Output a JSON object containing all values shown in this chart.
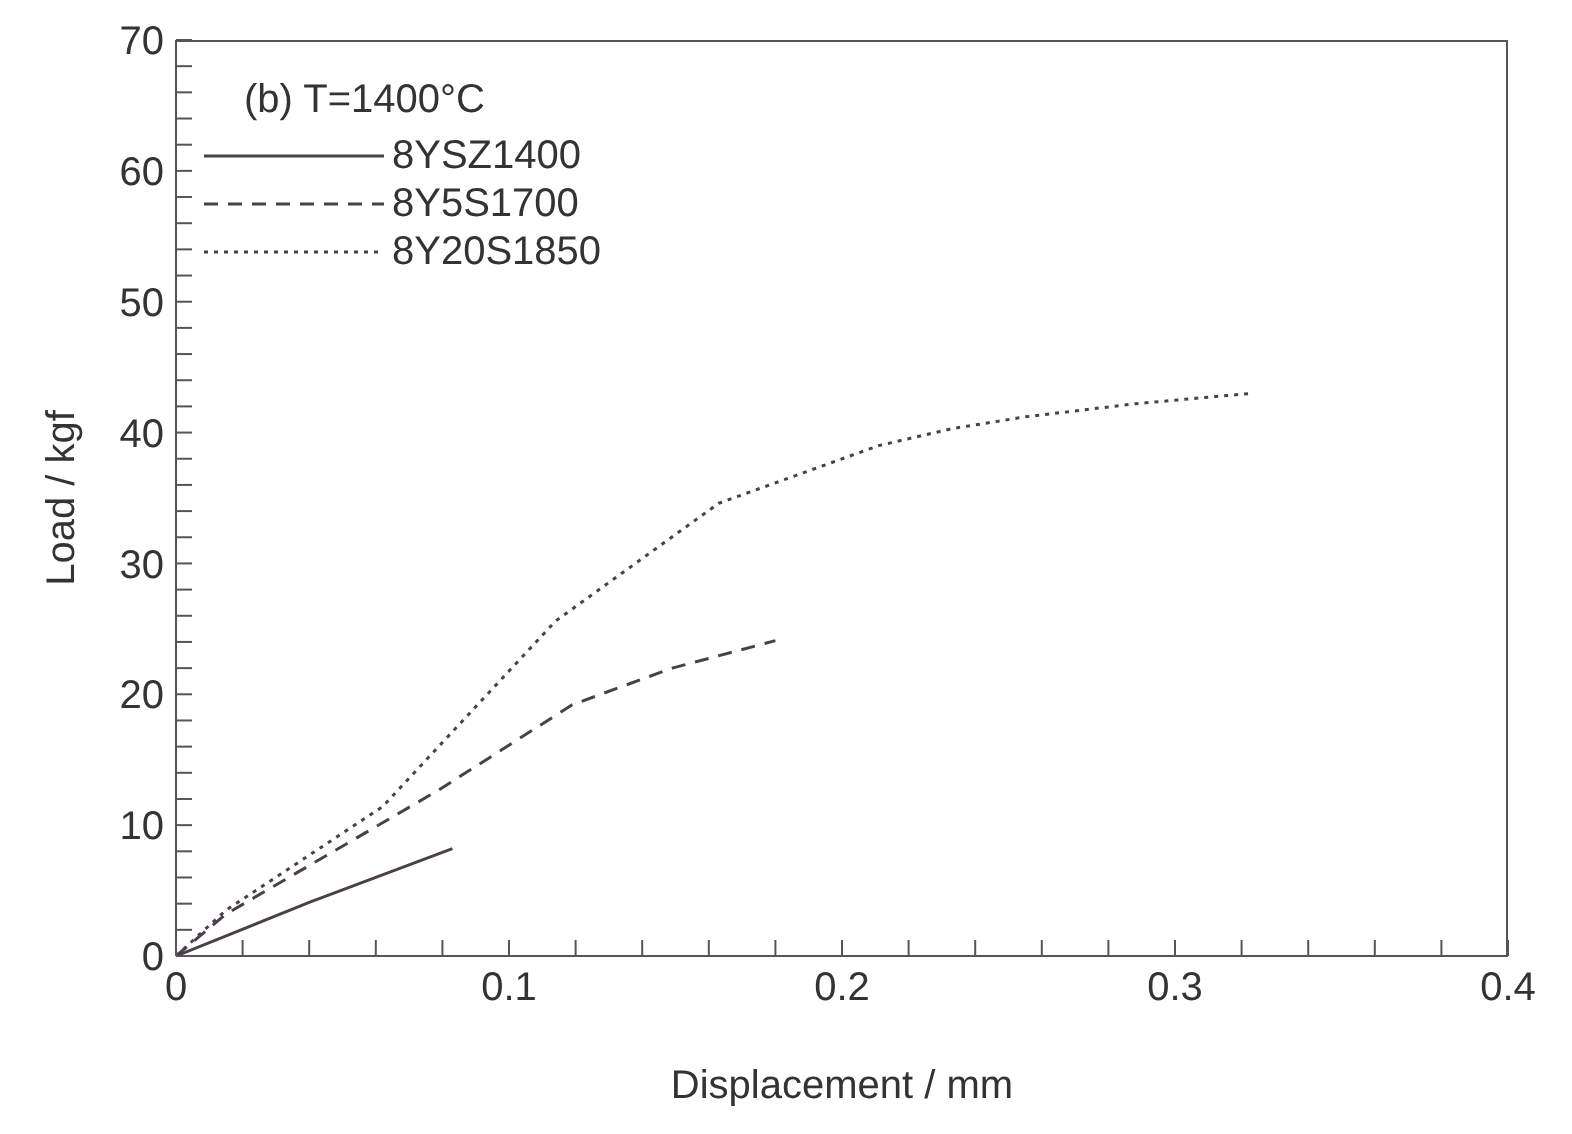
{
  "chart_data": {
    "type": "line",
    "xlabel": "Displacement / mm",
    "ylabel": "Load / kgf",
    "annotations": [
      "(b) T=1400°C"
    ],
    "xlim": [
      0,
      0.4
    ],
    "ylim": [
      0,
      70
    ],
    "xticks": [
      0,
      {
        "value": 0.02,
        "label": null
      },
      {
        "value": 0.04,
        "label": null
      },
      {
        "value": 0.06,
        "label": null
      },
      {
        "value": 0.08,
        "label": null
      },
      0.1,
      {
        "value": 0.12,
        "label": null
      },
      {
        "value": 0.14,
        "label": null
      },
      {
        "value": 0.16,
        "label": null
      },
      {
        "value": 0.18,
        "label": null
      },
      0.2,
      {
        "value": 0.22,
        "label": null
      },
      {
        "value": 0.24,
        "label": null
      },
      {
        "value": 0.26,
        "label": null
      },
      {
        "value": 0.28,
        "label": null
      },
      0.3,
      {
        "value": 0.32,
        "label": null
      },
      {
        "value": 0.34,
        "label": null
      },
      {
        "value": 0.36,
        "label": null
      },
      {
        "value": 0.38,
        "label": null
      },
      0.4
    ],
    "yticks": [
      0,
      {
        "value": 2,
        "label": null
      },
      {
        "value": 4,
        "label": null
      },
      {
        "value": 6,
        "label": null
      },
      {
        "value": 8,
        "label": null
      },
      10,
      {
        "value": 12,
        "label": null
      },
      {
        "value": 14,
        "label": null
      },
      {
        "value": 16,
        "label": null
      },
      {
        "value": 18,
        "label": null
      },
      20,
      {
        "value": 22,
        "label": null
      },
      {
        "value": 24,
        "label": null
      },
      {
        "value": 26,
        "label": null
      },
      {
        "value": 28,
        "label": null
      },
      30,
      {
        "value": 32,
        "label": null
      },
      {
        "value": 34,
        "label": null
      },
      {
        "value": 36,
        "label": null
      },
      {
        "value": 38,
        "label": null
      },
      40,
      {
        "value": 42,
        "label": null
      },
      {
        "value": 44,
        "label": null
      },
      {
        "value": 46,
        "label": null
      },
      {
        "value": 48,
        "label": null
      },
      50,
      {
        "value": 52,
        "label": null
      },
      {
        "value": 54,
        "label": null
      },
      {
        "value": 56,
        "label": null
      },
      {
        "value": 58,
        "label": null
      },
      60,
      {
        "value": 62,
        "label": null
      },
      {
        "value": 64,
        "label": null
      },
      {
        "value": 66,
        "label": null
      },
      {
        "value": 68,
        "label": null
      },
      70
    ],
    "legend": "top left",
    "series": [
      {
        "name": "8YSZ1400",
        "color": "#4a404a",
        "line_style": "solid",
        "x": [
          0,
          0.04,
          0.083
        ],
        "values": [
          0,
          4.1,
          8.2
        ]
      },
      {
        "name": "8Y5S1700",
        "color": "#4a404a",
        "line_style": "dashed",
        "x": [
          0,
          0.015,
          0.079,
          0.119,
          0.149,
          0.18
        ],
        "values": [
          0,
          3.2,
          12.7,
          19.2,
          22.0,
          24.1
        ]
      },
      {
        "name": "8Y20S1850",
        "color": "#4a404a",
        "line_style": "dotted",
        "x": [
          0,
          0.015,
          0.062,
          0.114,
          0.163,
          0.211,
          0.233,
          0.255,
          0.288,
          0.323
        ],
        "values": [
          0,
          3.5,
          11.4,
          25.6,
          34.6,
          39.0,
          40.3,
          41.2,
          42.2,
          43.0
        ]
      }
    ]
  }
}
